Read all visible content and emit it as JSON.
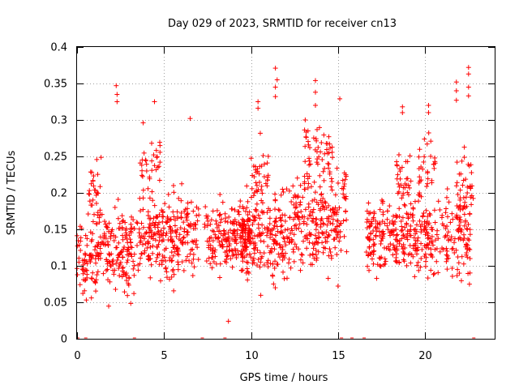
{
  "chart_data": {
    "type": "scatter",
    "title": "Day 029 of 2023, SRMTID for receiver cn13",
    "xlabel": "GPS time / hours",
    "ylabel": "SRMTID / TECUs",
    "xlim": [
      0,
      24
    ],
    "ylim": [
      0,
      0.4
    ],
    "x_ticks": [
      0,
      5,
      10,
      15,
      20
    ],
    "x_tick_labels": [
      "0",
      "5",
      "10",
      "15",
      "20"
    ],
    "y_ticks": [
      0,
      0.05,
      0.1,
      0.15,
      0.2,
      0.25,
      0.3,
      0.35,
      0.4
    ],
    "y_tick_labels": [
      "0",
      "0.05",
      "0.1",
      "0.15",
      "0.2",
      "0.25",
      "0.3",
      "0.35",
      "0.4"
    ],
    "grid": true,
    "marker": "plus",
    "color": "#ff0000",
    "zero_points_x": [
      0.05,
      0.5,
      3.3,
      7.2,
      8.5,
      15.2,
      15.8,
      16.5,
      22.8
    ],
    "highlight_points": [
      {
        "x": 2.25,
        "y": 0.347
      },
      {
        "x": 2.3,
        "y": 0.335
      },
      {
        "x": 2.3,
        "y": 0.325
      },
      {
        "x": 4.45,
        "y": 0.325
      },
      {
        "x": 6.5,
        "y": 0.302
      },
      {
        "x": 11.4,
        "y": 0.371
      },
      {
        "x": 11.5,
        "y": 0.355
      },
      {
        "x": 11.4,
        "y": 0.345
      },
      {
        "x": 11.4,
        "y": 0.332
      },
      {
        "x": 13.7,
        "y": 0.354
      },
      {
        "x": 13.7,
        "y": 0.338
      },
      {
        "x": 13.7,
        "y": 0.32
      },
      {
        "x": 15.1,
        "y": 0.329
      },
      {
        "x": 18.7,
        "y": 0.318
      },
      {
        "x": 18.7,
        "y": 0.31
      },
      {
        "x": 20.2,
        "y": 0.32
      },
      {
        "x": 20.2,
        "y": 0.31
      },
      {
        "x": 21.8,
        "y": 0.352
      },
      {
        "x": 21.8,
        "y": 0.34
      },
      {
        "x": 21.8,
        "y": 0.327
      },
      {
        "x": 22.5,
        "y": 0.372
      },
      {
        "x": 22.5,
        "y": 0.363
      },
      {
        "x": 22.5,
        "y": 0.345
      },
      {
        "x": 22.5,
        "y": 0.333
      },
      {
        "x": 10.4,
        "y": 0.325
      },
      {
        "x": 10.4,
        "y": 0.316
      },
      {
        "x": 3.8,
        "y": 0.296
      },
      {
        "x": 8.7,
        "y": 0.024
      }
    ],
    "clusters": [
      {
        "x_start": 0.0,
        "x_end": 0.9,
        "y_center": 0.11,
        "y_spread": 0.05,
        "count": 60
      },
      {
        "x_start": 0.6,
        "x_end": 1.4,
        "y_center": 0.2,
        "y_spread": 0.06,
        "count": 30
      },
      {
        "x_start": 1.0,
        "x_end": 3.3,
        "y_center": 0.12,
        "y_spread": 0.06,
        "count": 180
      },
      {
        "x_start": 3.4,
        "x_end": 7.0,
        "y_center": 0.14,
        "y_spread": 0.06,
        "count": 260
      },
      {
        "x_start": 3.6,
        "x_end": 4.8,
        "y_center": 0.24,
        "y_spread": 0.04,
        "count": 30
      },
      {
        "x_start": 7.3,
        "x_end": 10.0,
        "y_center": 0.14,
        "y_spread": 0.05,
        "count": 190
      },
      {
        "x_start": 9.5,
        "x_end": 12.5,
        "y_center": 0.14,
        "y_spread": 0.06,
        "count": 230
      },
      {
        "x_start": 10.0,
        "x_end": 11.0,
        "y_center": 0.22,
        "y_spread": 0.05,
        "count": 40
      },
      {
        "x_start": 12.5,
        "x_end": 15.0,
        "y_center": 0.16,
        "y_spread": 0.07,
        "count": 200
      },
      {
        "x_start": 13.0,
        "x_end": 14.7,
        "y_center": 0.26,
        "y_spread": 0.04,
        "count": 50
      },
      {
        "x_start": 15.0,
        "x_end": 15.5,
        "y_center": 0.18,
        "y_spread": 0.06,
        "count": 30
      },
      {
        "x_start": 16.6,
        "x_end": 19.0,
        "y_center": 0.14,
        "y_spread": 0.05,
        "count": 170
      },
      {
        "x_start": 18.3,
        "x_end": 19.2,
        "y_center": 0.22,
        "y_spread": 0.04,
        "count": 30
      },
      {
        "x_start": 19.0,
        "x_end": 22.6,
        "y_center": 0.14,
        "y_spread": 0.06,
        "count": 230
      },
      {
        "x_start": 19.6,
        "x_end": 20.6,
        "y_center": 0.24,
        "y_spread": 0.04,
        "count": 30
      },
      {
        "x_start": 21.8,
        "x_end": 22.8,
        "y_center": 0.2,
        "y_spread": 0.06,
        "count": 40
      }
    ]
  }
}
